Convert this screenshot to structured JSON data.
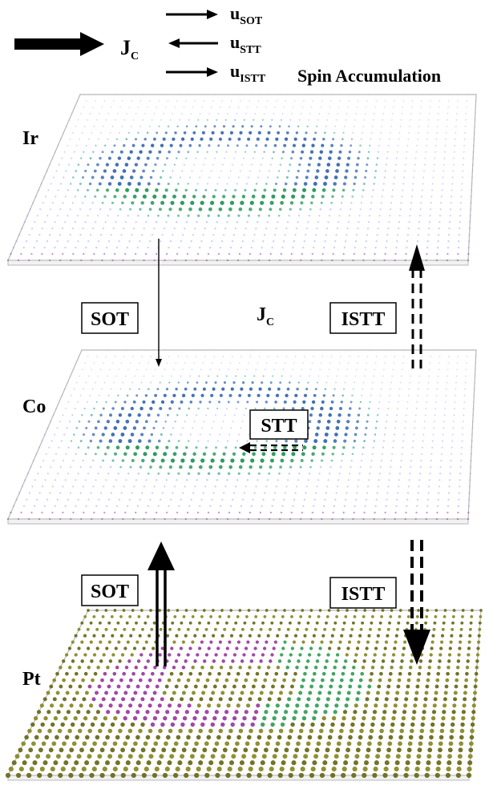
{
  "legend": {
    "jc_label": "J",
    "jc_sub": "C",
    "u_label": "u",
    "u_sot_sub": "SOT",
    "u_stt_sub": "STT",
    "u_istt_sub": "ISTT",
    "spin_accumulation": "Spin Accumulation"
  },
  "layers": [
    {
      "name": "Ir",
      "palette": [
        "#2a9d8f",
        "#3f6fb5",
        "#2e9b5f",
        "#9aa0ff"
      ]
    },
    {
      "name": "Co",
      "palette": [
        "#2a9d8f",
        "#3f6fb5",
        "#2e9b5f",
        "#9aa0ff"
      ]
    },
    {
      "name": "Pt",
      "palette": [
        "#8a8a2a",
        "#6b6b1f",
        "#9b3fa0",
        "#3aa05a"
      ]
    }
  ],
  "middle": {
    "sot": "SOT",
    "jc_label": "J",
    "jc_sub": "C",
    "istt": "ISTT",
    "stt": "STT"
  },
  "lower": {
    "sot": "SOT",
    "istt": "ISTT"
  },
  "colors": {
    "arrow": "#000000",
    "plate_edge": "#b8b8b8",
    "bottom_row": "#9b3fa0"
  }
}
